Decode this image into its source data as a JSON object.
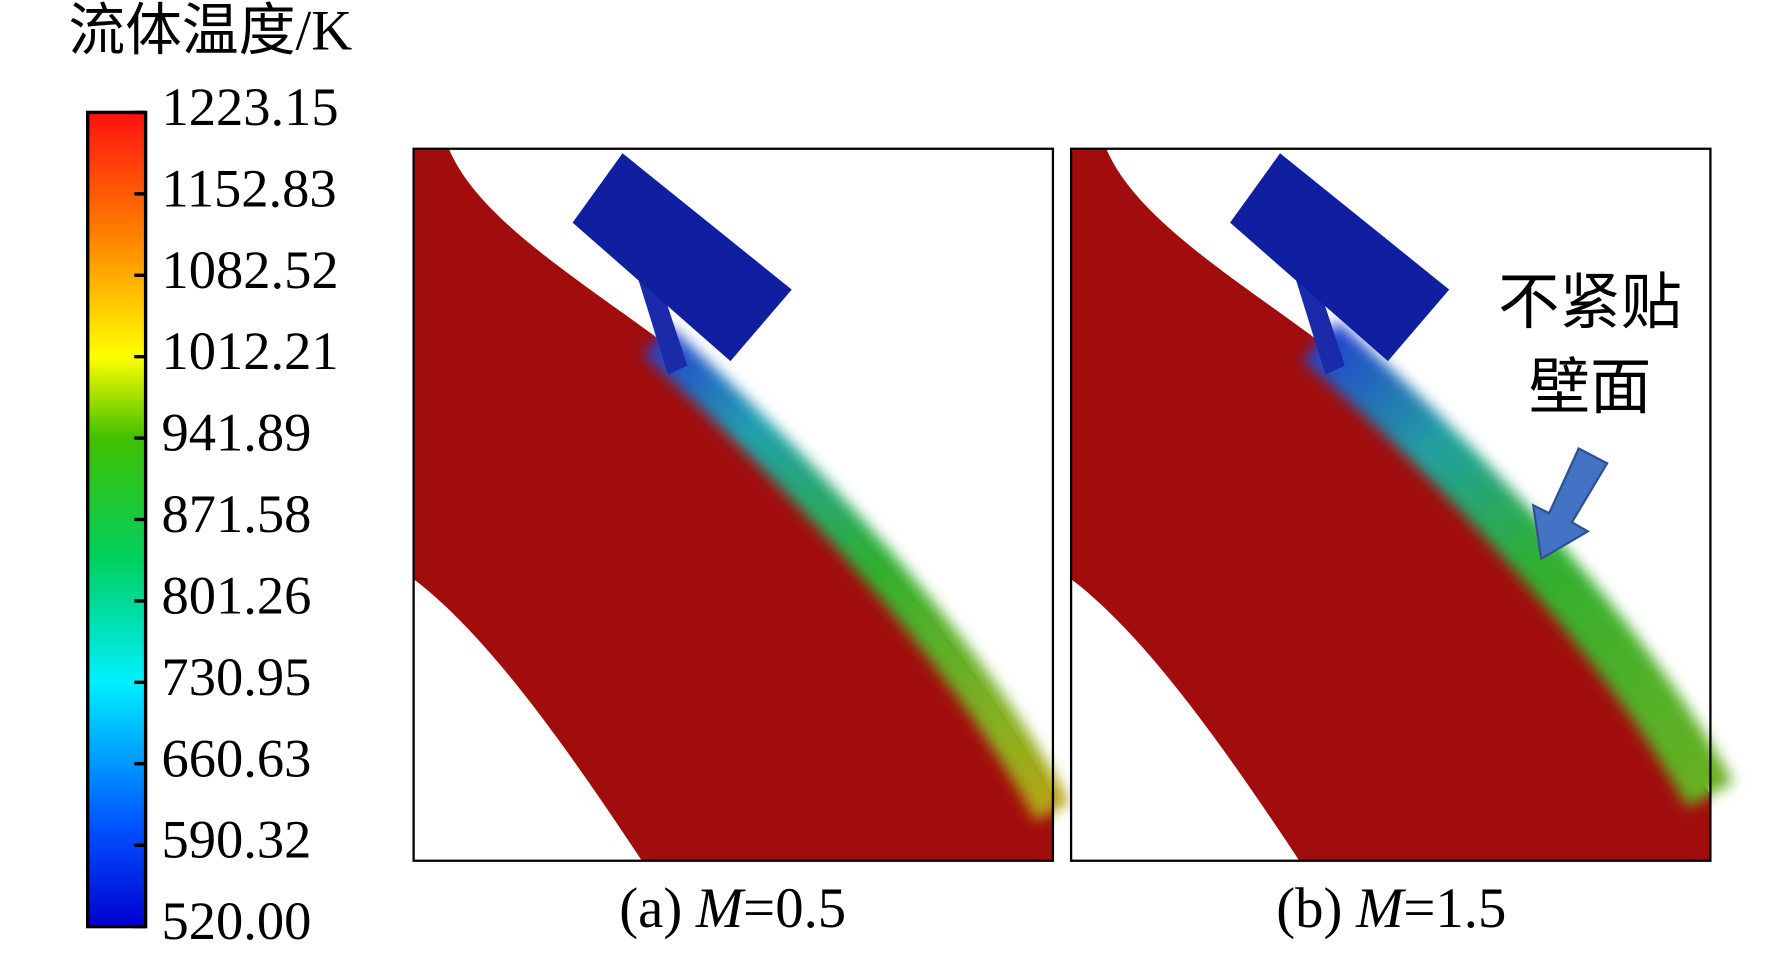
{
  "colorbar": {
    "title": "流体温度/K",
    "range": [
      520,
      1223.15
    ],
    "ticks": [
      {
        "value": 1223.15,
        "label": "1223.15"
      },
      {
        "value": 1152.83,
        "label": "1152.83"
      },
      {
        "value": 1082.52,
        "label": "1082.52"
      },
      {
        "value": 1012.21,
        "label": "1012.21"
      },
      {
        "value": 941.89,
        "label": "941.89"
      },
      {
        "value": 871.58,
        "label": "871.58"
      },
      {
        "value": 801.26,
        "label": "801.26"
      },
      {
        "value": 730.95,
        "label": "730.95"
      },
      {
        "value": 660.63,
        "label": "660.63"
      },
      {
        "value": 590.32,
        "label": "590.32"
      },
      {
        "value": 520,
        "label": "520.00"
      }
    ]
  },
  "panels": [
    {
      "tag": "(a)",
      "param": "M",
      "param_value": "=0.5"
    },
    {
      "tag": "(b)",
      "param": "M",
      "param_value": "=1.5"
    }
  ],
  "annotation": {
    "lines": [
      "不紧贴",
      "壁面"
    ]
  }
}
